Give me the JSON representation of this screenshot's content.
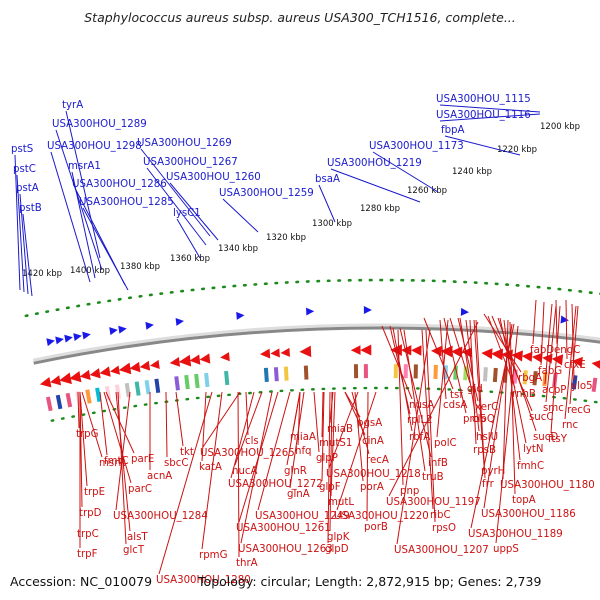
{
  "title": "Staphylococcus aureus subsp. aureus USA300_TCH1516, complete...",
  "footer": {
    "accession": "Accession: NC_010079",
    "topology": "Topology: circular; Length: 2,872,915 bp; Genes: 2,739"
  },
  "colors": {
    "forward_label": "#1a1acc",
    "reverse_label": "#cc1111",
    "kbp_ticks": "#1a8a1a",
    "backbone": "#888888",
    "reverse_arrows": "#e81010",
    "forward_arrows": "#1a1ae8"
  },
  "kbp_ticks": [
    "1200 kbp",
    "1220 kbp",
    "1240 kbp",
    "1260 kbp",
    "1280 kbp",
    "1300 kbp",
    "1320 kbp",
    "1340 kbp",
    "1360 kbp",
    "1380 kbp",
    "1400 kbp",
    "1420 kbp"
  ],
  "forward_genes": [
    "USA300HOU_1115",
    "USA300HOU_1116",
    "fbpA",
    "USA300HOU_1173",
    "USA300HOU_1219",
    "bsaA",
    "USA300HOU_1259",
    "USA300HOU_1260",
    "USA300HOU_1267",
    "lysC1",
    "USA300HOU_1269",
    "tyrA",
    "USA300HOU_1289",
    "USA300HOU_1298",
    "msrA1",
    "USA300HOU_1286",
    "USA300HOU_1285",
    "pstS",
    "pstC",
    "pstA",
    "pstB"
  ],
  "reverse_genes": [
    "trpG",
    "msrR",
    "trpE",
    "trpD",
    "trpC",
    "trpF",
    "fmtC",
    "parE",
    "parC",
    "alsT",
    "glcT",
    "acnA",
    "USA300HOU_1284",
    "sbcC",
    "tkt",
    "katA",
    "USA300HOU_1280",
    "rpmG",
    "thrA",
    "cls",
    "USA300HOU_1265",
    "nucA",
    "USA300HOU_1272",
    "hfq",
    "miaA",
    "glnR",
    "glnA",
    "USA300HOU_1249",
    "USA300HOU_1261",
    "USA300HOU_1263",
    "mutS1",
    "miaB",
    "glpP",
    "glpF",
    "glpK",
    "glpD",
    "mutL",
    "cinA",
    "pgsA",
    "recA",
    "porA",
    "USA300HOU_1218",
    "porB",
    "USA300HOU_1220",
    "nusA",
    "rplL2",
    "rbfA",
    "infB",
    "truB",
    "pnp",
    "ribC",
    "rpsO",
    "USA300HOU_1207",
    "tsf",
    "cdsA",
    "proS",
    "polC",
    "gid",
    "xerC",
    "clpQ",
    "hslU",
    "rpsB",
    "pyrH",
    "frr",
    "USA300HOU_1197",
    "rbgA",
    "rnhB",
    "sucC",
    "sucD",
    "lytN",
    "fmhC",
    "USA300HOU_1180",
    "topA",
    "USA300HOU_1186",
    "USA300HOU_1189",
    "uppS",
    "fabD",
    "engC",
    "fabG",
    "cfxE",
    "acpP",
    "ylo5",
    "smc",
    "recG",
    "rnc",
    "ftsY"
  ]
}
